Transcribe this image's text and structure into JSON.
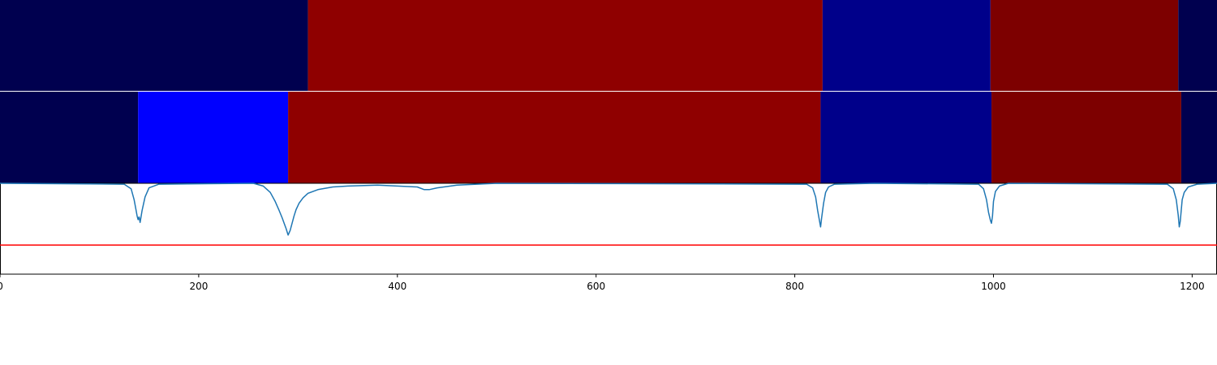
{
  "chart_data": [
    {
      "type": "heatmap",
      "panel": "segmentation-track-1",
      "xlim": [
        0,
        1225
      ],
      "segments": [
        {
          "start": 0,
          "end": 310,
          "color": "#00004f"
        },
        {
          "start": 310,
          "end": 828,
          "color": "#8f0000"
        },
        {
          "start": 828,
          "end": 997,
          "color": "#00008a"
        },
        {
          "start": 997,
          "end": 1186,
          "color": "#7d0000"
        },
        {
          "start": 1186,
          "end": 1225,
          "color": "#00004f"
        }
      ]
    },
    {
      "type": "heatmap",
      "panel": "segmentation-track-2",
      "xlim": [
        0,
        1225
      ],
      "segments": [
        {
          "start": 0,
          "end": 139,
          "color": "#00004f"
        },
        {
          "start": 139,
          "end": 290,
          "color": "#0000ff"
        },
        {
          "start": 290,
          "end": 826,
          "color": "#8f0000"
        },
        {
          "start": 826,
          "end": 998,
          "color": "#00008a"
        },
        {
          "start": 998,
          "end": 1189,
          "color": "#7d0000"
        },
        {
          "start": 1189,
          "end": 1225,
          "color": "#00004f"
        }
      ]
    },
    {
      "type": "line",
      "panel": "score-profile",
      "xlim": [
        0,
        1225
      ],
      "ylim": [
        -1,
        0
      ],
      "line_color": "#1f77b4",
      "threshold": {
        "value": -0.68,
        "color": "#ff0000"
      },
      "x": [
        0,
        125,
        132,
        135,
        137,
        138,
        139,
        140,
        141,
        143,
        146,
        150,
        160,
        255,
        265,
        272,
        277,
        281,
        284,
        286,
        288,
        290,
        292,
        294,
        296,
        298,
        301,
        305,
        310,
        320,
        335,
        350,
        380,
        420,
        427,
        432,
        440,
        460,
        500,
        812,
        818,
        821,
        823,
        825,
        826,
        827,
        829,
        831,
        834,
        840,
        880,
        985,
        990,
        993,
        995,
        997,
        998,
        999,
        1000,
        1002,
        1006,
        1015,
        1175,
        1181,
        1184,
        1186,
        1187,
        1188,
        1189,
        1190,
        1192,
        1196,
        1205,
        1225
      ],
      "y": [
        0,
        -0.01,
        -0.06,
        -0.18,
        -0.3,
        -0.36,
        -0.4,
        -0.37,
        -0.43,
        -0.3,
        -0.15,
        -0.05,
        -0.01,
        0,
        -0.03,
        -0.1,
        -0.2,
        -0.3,
        -0.38,
        -0.44,
        -0.5,
        -0.57,
        -0.52,
        -0.44,
        -0.36,
        -0.29,
        -0.22,
        -0.16,
        -0.11,
        -0.07,
        -0.04,
        -0.03,
        -0.02,
        -0.04,
        -0.07,
        -0.07,
        -0.05,
        -0.02,
        0,
        -0.01,
        -0.05,
        -0.15,
        -0.3,
        -0.42,
        -0.48,
        -0.38,
        -0.22,
        -0.1,
        -0.04,
        -0.01,
        0,
        -0.01,
        -0.06,
        -0.18,
        -0.32,
        -0.41,
        -0.44,
        -0.36,
        -0.2,
        -0.09,
        -0.03,
        0,
        -0.01,
        -0.06,
        -0.18,
        -0.35,
        -0.48,
        -0.42,
        -0.3,
        -0.18,
        -0.1,
        -0.04,
        -0.01,
        0
      ]
    }
  ],
  "x_axis": {
    "ticks": [
      0,
      200,
      400,
      600,
      800,
      1000,
      1200
    ],
    "tick_labels": [
      "0",
      "200",
      "400",
      "600",
      "800",
      "1000",
      "1200"
    ]
  }
}
